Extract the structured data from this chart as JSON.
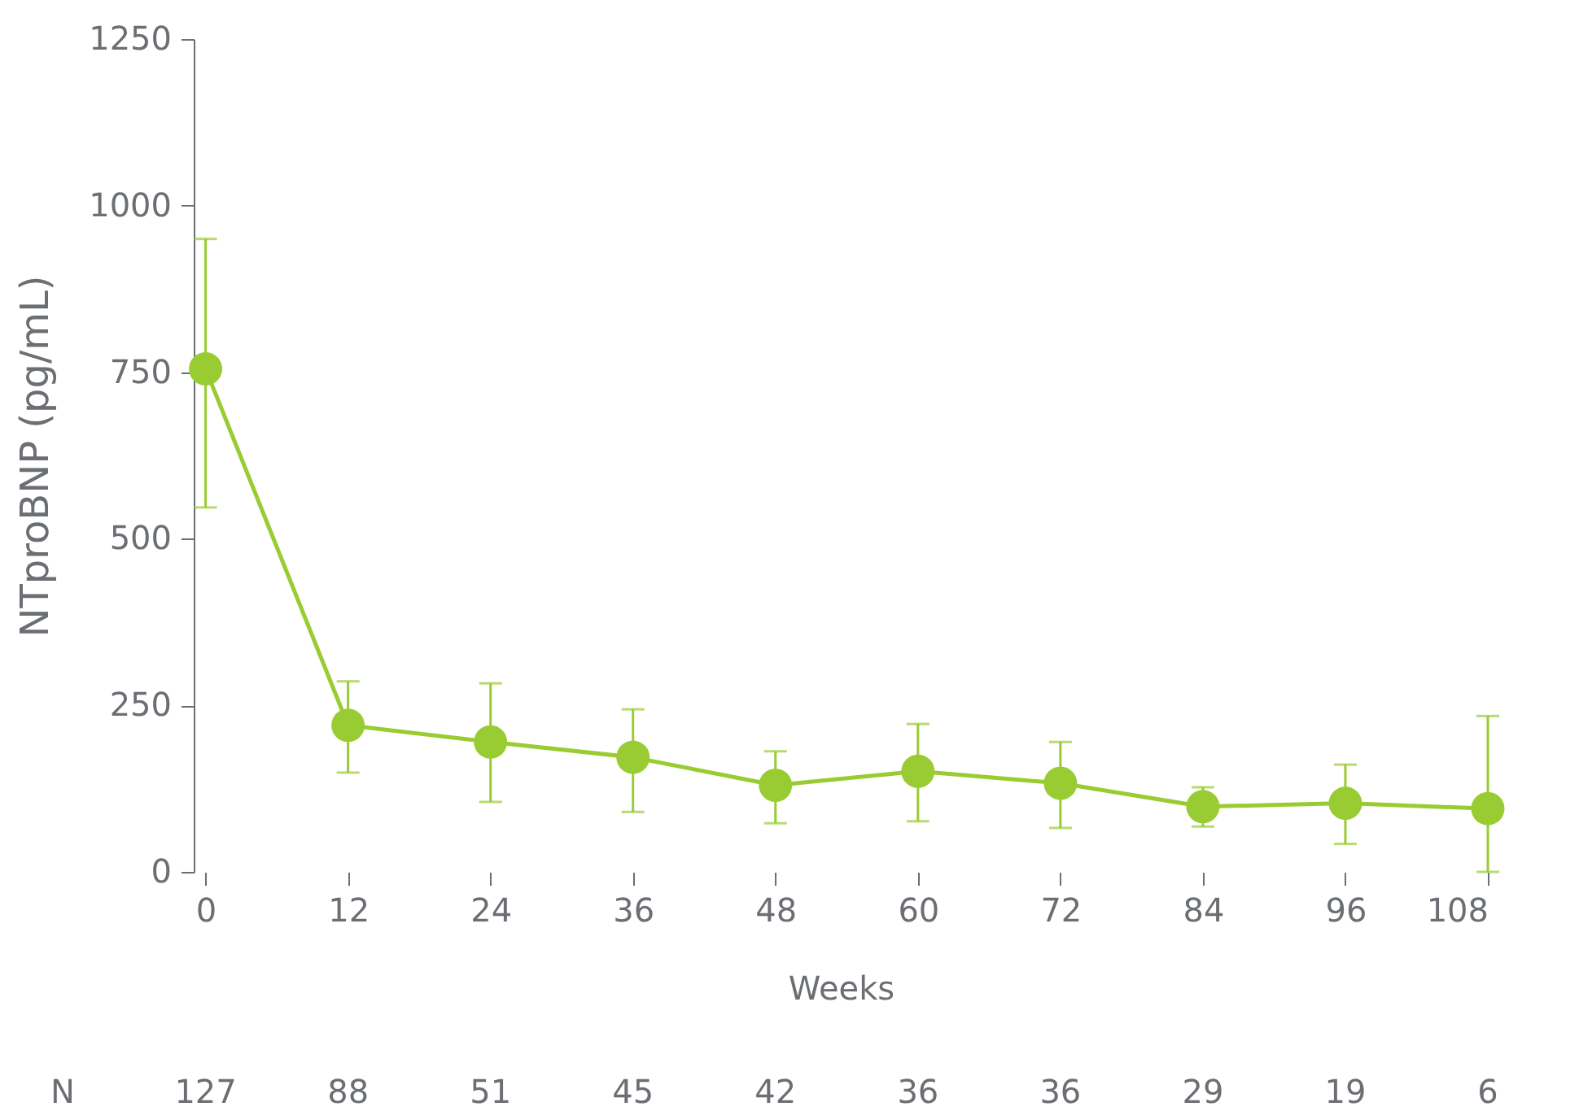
{
  "chart_data": {
    "type": "line",
    "xlabel": "Weeks",
    "ylabel": "NTproBNP (pg/mL)",
    "x": [
      0,
      12,
      24,
      36,
      48,
      60,
      72,
      84,
      96,
      108
    ],
    "series": [
      {
        "color": "#99cc33",
        "values": [
          755,
          220,
          195,
          172,
          130,
          151,
          133,
          98,
          103,
          95
        ],
        "errors": [
          [
            547,
            950
          ],
          [
            149,
            286
          ],
          [
            105,
            283
          ],
          [
            90,
            244
          ],
          [
            73,
            181
          ],
          [
            76,
            222
          ],
          [
            66,
            195
          ],
          [
            68,
            127
          ],
          [
            42,
            161
          ],
          [
            0,
            234
          ]
        ]
      }
    ],
    "xlim": [
      -1,
      108
    ],
    "xticks": [
      0,
      12,
      24,
      36,
      48,
      60,
      72,
      84,
      96,
      108
    ],
    "ylim": [
      0,
      1250
    ],
    "yticks": [
      0,
      250,
      500,
      750,
      1000,
      1250
    ],
    "grid": false,
    "marker": "circle",
    "line_style": "solid",
    "annotations": [
      "N",
      "127",
      "88",
      "51",
      "45",
      "42",
      "36",
      "36",
      "29",
      "19",
      "6"
    ]
  }
}
